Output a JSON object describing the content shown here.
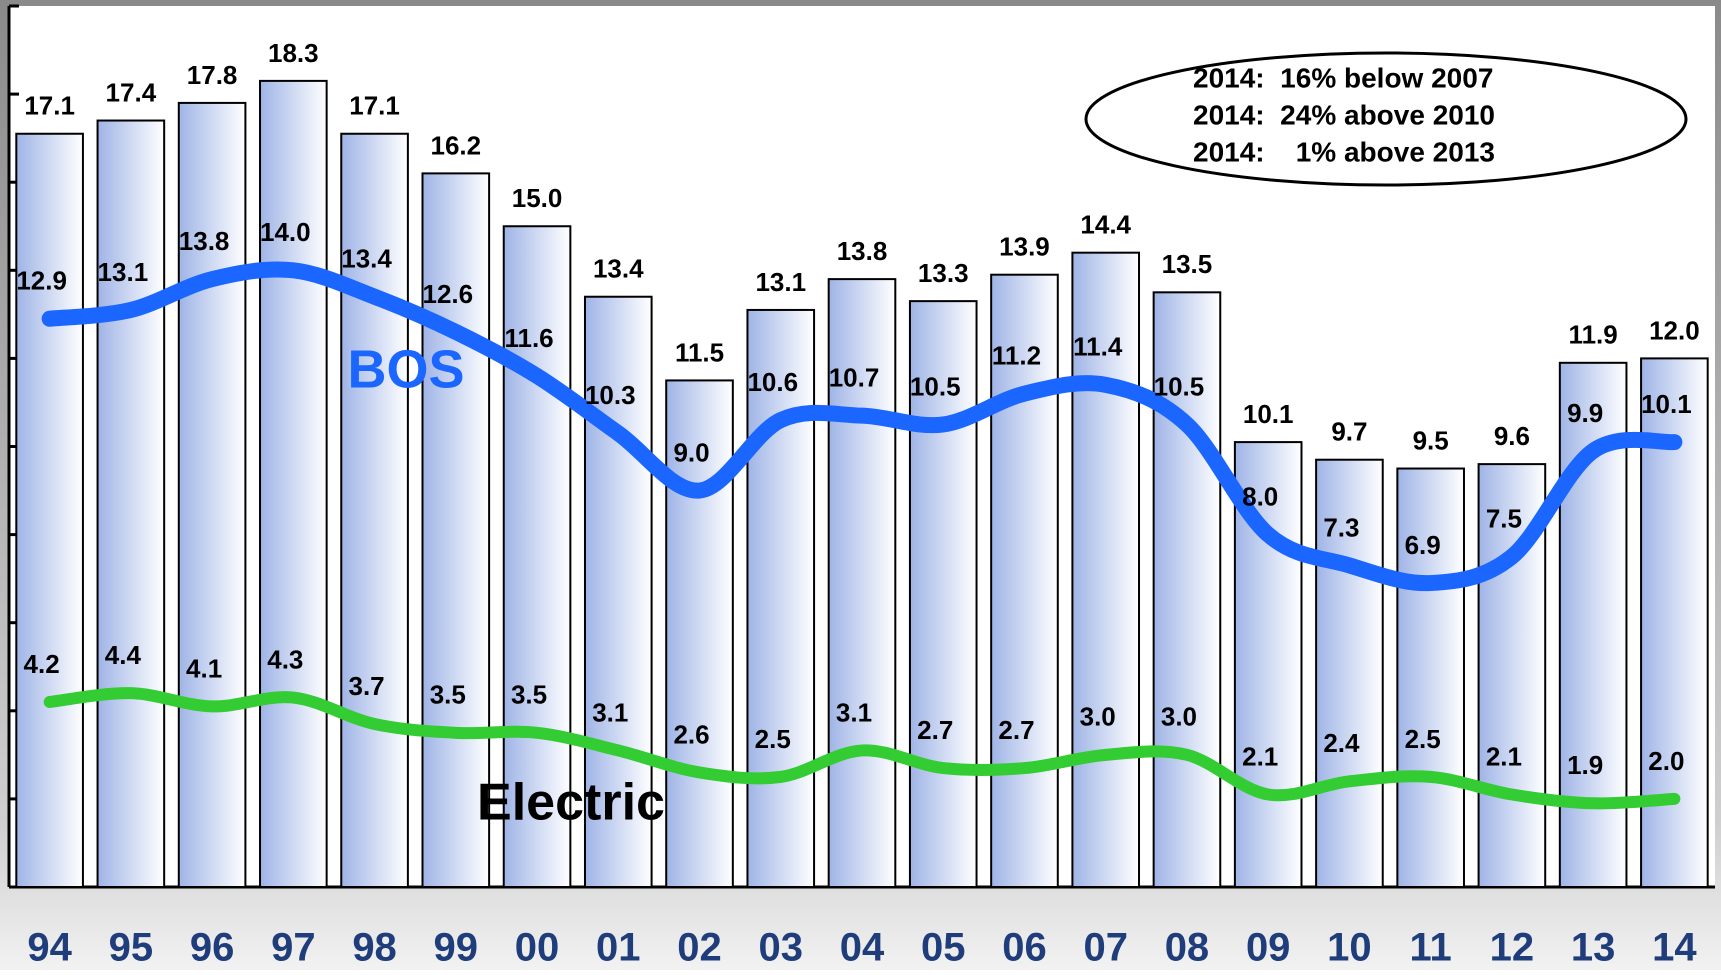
{
  "chart_data": {
    "type": "bar",
    "categories": [
      "94",
      "95",
      "96",
      "97",
      "98",
      "99",
      "00",
      "01",
      "02",
      "03",
      "04",
      "05",
      "06",
      "07",
      "08",
      "09",
      "10",
      "11",
      "12",
      "13",
      "14"
    ],
    "values": [
      17.1,
      17.4,
      17.8,
      18.3,
      17.1,
      16.2,
      15.0,
      13.4,
      11.5,
      13.1,
      13.8,
      13.3,
      13.9,
      14.4,
      13.5,
      10.1,
      9.7,
      9.5,
      9.6,
      11.9,
      12.0
    ],
    "value_labels": [
      "17.1",
      "17.4",
      "17.8",
      "18.3",
      "17.1",
      "16.2",
      "15.0",
      "13.4",
      "11.5",
      "13.1",
      "13.8",
      "13.3",
      "13.9",
      "14.4",
      "13.5",
      "10.1",
      "9.7",
      "9.5",
      "9.6",
      "11.9",
      "12.0"
    ],
    "color": "#9fb4e6",
    "series": [
      {
        "name": "BOS",
        "color": "#1a66ff",
        "values": [
          12.9,
          13.1,
          13.8,
          14.0,
          13.4,
          12.6,
          11.6,
          10.3,
          9.0,
          10.6,
          10.7,
          10.5,
          11.2,
          11.4,
          10.5,
          8.0,
          7.3,
          6.9,
          7.5,
          9.9,
          10.1
        ],
        "value_labels": [
          "12.9",
          "13.1",
          "13.8",
          "14.0",
          "13.4",
          "12.6",
          "11.6",
          "10.3",
          "9.0",
          "10.6",
          "10.7",
          "10.5",
          "11.2",
          "11.4",
          "10.5",
          "8.0",
          "7.3",
          "6.9",
          "7.5",
          "9.9",
          "10.1"
        ]
      },
      {
        "name": "Electric",
        "color": "#33cc33",
        "values": [
          4.2,
          4.4,
          4.1,
          4.3,
          3.7,
          3.5,
          3.5,
          3.1,
          2.6,
          2.5,
          3.1,
          2.7,
          2.7,
          3.0,
          3.0,
          2.1,
          2.4,
          2.5,
          2.1,
          1.9,
          2.0
        ],
        "value_labels": [
          "4.2",
          "4.4",
          "4.1",
          "4.3",
          "3.7",
          "3.5",
          "3.5",
          "3.1",
          "2.6",
          "2.5",
          "3.1",
          "2.7",
          "2.7",
          "3.0",
          "3.0",
          "2.1",
          "2.4",
          "2.5",
          "2.1",
          "1.9",
          "2.0"
        ]
      }
    ],
    "ylim": [
      0,
      20
    ],
    "yticks": [
      0,
      2,
      4,
      6,
      8,
      10,
      12,
      14,
      16,
      18,
      20
    ],
    "annotations": [
      "2014:  16% below 2007",
      "2014:  24% above 2010",
      "2014:    1% above 2013"
    ]
  }
}
